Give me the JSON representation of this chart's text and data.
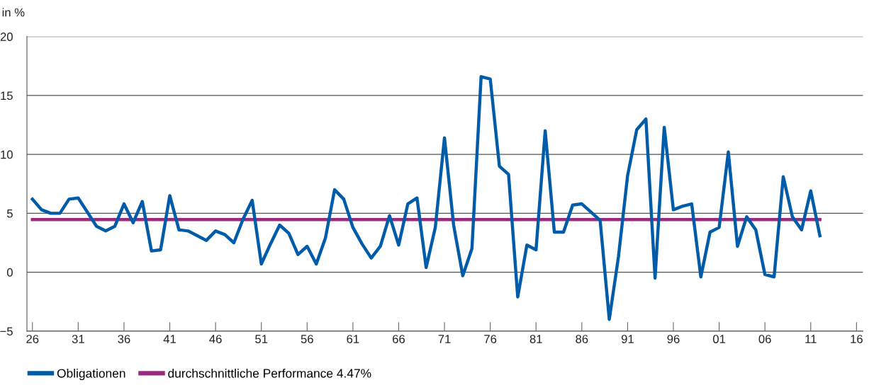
{
  "chart_data": {
    "type": "line",
    "ylabel": "in %",
    "x": [
      1926,
      1927,
      1928,
      1929,
      1930,
      1931,
      1932,
      1933,
      1934,
      1935,
      1936,
      1937,
      1938,
      1939,
      1940,
      1941,
      1942,
      1943,
      1944,
      1945,
      1946,
      1947,
      1948,
      1949,
      1950,
      1951,
      1952,
      1953,
      1954,
      1955,
      1956,
      1957,
      1958,
      1959,
      1960,
      1961,
      1962,
      1963,
      1964,
      1965,
      1966,
      1967,
      1968,
      1969,
      1970,
      1971,
      1972,
      1973,
      1974,
      1975,
      1976,
      1977,
      1978,
      1979,
      1980,
      1981,
      1982,
      1983,
      1984,
      1985,
      1986,
      1987,
      1988,
      1989,
      1990,
      1991,
      1992,
      1993,
      1994,
      1995,
      1996,
      1997,
      1998,
      1999,
      2000,
      2001,
      2002,
      2003,
      2004,
      2005,
      2006,
      2007,
      2008,
      2009,
      2010,
      2011,
      2012
    ],
    "series": [
      {
        "name": "Obligationen",
        "color": "#005ca9",
        "values": [
          6.2,
          5.3,
          5.0,
          5.0,
          6.2,
          6.3,
          5.1,
          3.9,
          3.5,
          3.9,
          5.8,
          4.2,
          6.0,
          1.8,
          1.9,
          6.5,
          3.6,
          3.5,
          3.1,
          2.7,
          3.5,
          3.2,
          2.5,
          4.5,
          6.1,
          0.7,
          2.4,
          4.0,
          3.3,
          1.5,
          2.2,
          0.7,
          2.9,
          7.0,
          6.2,
          3.8,
          2.4,
          1.2,
          2.2,
          4.8,
          2.3,
          5.8,
          6.3,
          0.4,
          3.8,
          11.4,
          4.0,
          -0.3,
          2.0,
          16.6,
          16.4,
          9.0,
          8.3,
          -2.1,
          2.3,
          1.9,
          12.0,
          3.4,
          3.4,
          5.7,
          5.8,
          5.1,
          4.4,
          -4.0,
          1.3,
          8.2,
          12.1,
          13.0,
          -0.5,
          12.3,
          5.3,
          5.6,
          5.8,
          -0.4,
          3.4,
          3.8,
          10.2,
          2.2,
          4.7,
          3.6,
          -0.2,
          -0.4,
          8.1,
          4.7,
          3.6,
          6.9,
          3.1
        ]
      }
    ],
    "ref_lines": [
      {
        "axis": "y",
        "value": 4.47,
        "label": "durchschnittliche Performance 4.47%",
        "color": "#9b2a7f",
        "line_style": "solid"
      }
    ],
    "xlim": [
      1925.4,
      2016.7
    ],
    "ylim": [
      -5,
      20
    ],
    "xticks": [
      {
        "value": 1926,
        "label": "26"
      },
      {
        "value": 1931,
        "label": "31"
      },
      {
        "value": 1936,
        "label": "36"
      },
      {
        "value": 1941,
        "label": "41"
      },
      {
        "value": 1946,
        "label": "46"
      },
      {
        "value": 1951,
        "label": "51"
      },
      {
        "value": 1956,
        "label": "56"
      },
      {
        "value": 1961,
        "label": "61"
      },
      {
        "value": 1966,
        "label": "66"
      },
      {
        "value": 1971,
        "label": "71"
      },
      {
        "value": 1976,
        "label": "76"
      },
      {
        "value": 1981,
        "label": "81"
      },
      {
        "value": 1986,
        "label": "86"
      },
      {
        "value": 1991,
        "label": "91"
      },
      {
        "value": 1996,
        "label": "96"
      },
      {
        "value": 2001,
        "label": "01"
      },
      {
        "value": 2006,
        "label": "06"
      },
      {
        "value": 2011,
        "label": "11"
      },
      {
        "value": 2016,
        "label": "16"
      }
    ],
    "yticks": [
      {
        "value": -5,
        "label": "−5"
      },
      0,
      5,
      10,
      15,
      20
    ],
    "grid": "y",
    "legend": "bottom left",
    "marker": "none",
    "line_style": "solid"
  }
}
